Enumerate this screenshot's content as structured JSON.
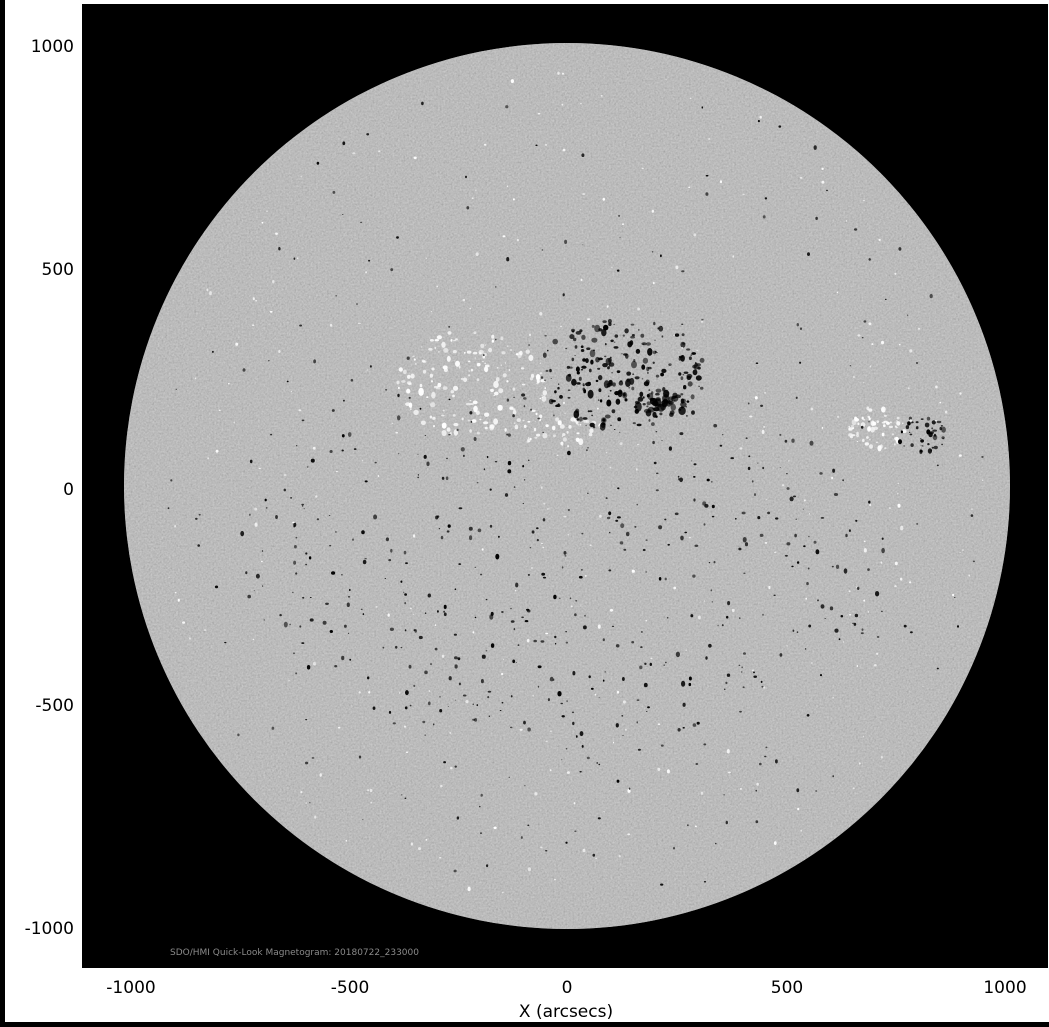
{
  "image": {
    "caption": "SDO/HMI Quick-Look Magnetogram: 20180722_233000",
    "x_axis_label": "X (arcsecs)",
    "y_ticks": [
      "1000",
      "500",
      "0",
      "-500",
      "-1000"
    ],
    "x_ticks": [
      "-1000",
      "-500",
      "0",
      "500",
      "1000"
    ],
    "colors": {
      "background": "#000000",
      "disk": "#7f7f7f",
      "figure_background": "#ffffff",
      "positive_polarity": "#ffffff",
      "negative_polarity": "#000000"
    }
  }
}
